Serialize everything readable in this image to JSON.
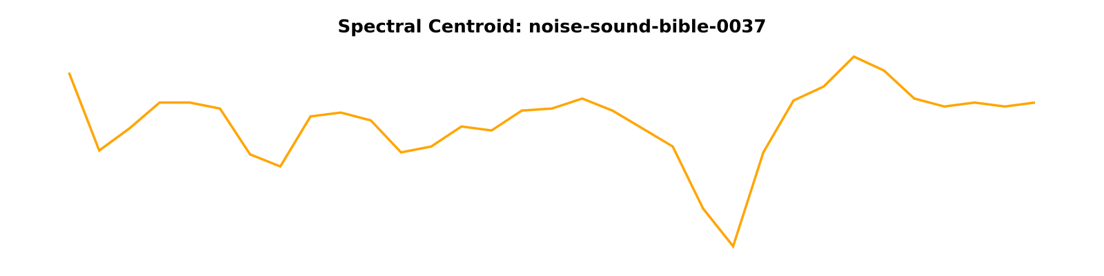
{
  "chart_data": {
    "type": "line",
    "title": "Spectral Centroid: noise-sound-bible-0037",
    "xlabel": "",
    "ylabel": "",
    "axes_visible": false,
    "grid": false,
    "series": [
      {
        "color": "#FFA500",
        "x": [
          0,
          1,
          2,
          3,
          4,
          5,
          6,
          7,
          8,
          9,
          10,
          11,
          12,
          13,
          14,
          15,
          16,
          17,
          18,
          19,
          20,
          21,
          22,
          23,
          24,
          25,
          26,
          27,
          28,
          29,
          30,
          31,
          32
        ],
        "values": [
          0.9,
          0.51,
          0.62,
          0.75,
          0.75,
          0.72,
          0.49,
          0.43,
          0.68,
          0.7,
          0.66,
          0.5,
          0.53,
          0.63,
          0.61,
          0.71,
          0.72,
          0.77,
          0.71,
          0.62,
          0.53,
          0.22,
          0.03,
          0.5,
          0.76,
          0.83,
          0.98,
          0.91,
          0.77,
          0.73,
          0.75,
          0.73,
          0.75
        ]
      }
    ],
    "xlim": [
      0,
      32
    ],
    "ylim": [
      0.03,
      0.98
    ]
  }
}
